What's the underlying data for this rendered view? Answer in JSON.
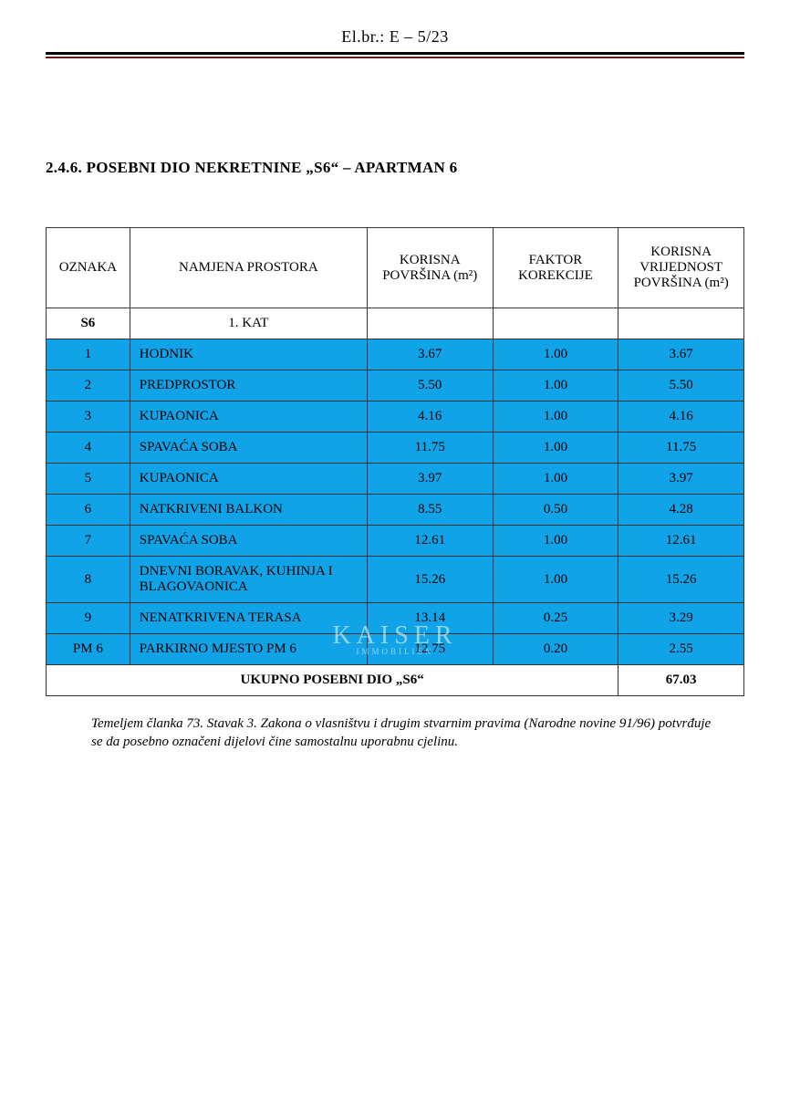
{
  "header": {
    "reference": "El.br.: E – 5/23"
  },
  "section": {
    "number_and_title": "2.4.6.   POSEBNI DIO NEKRETNINE „S6“ – APARTMAN 6"
  },
  "table": {
    "columns": {
      "oznaka": "OZNAKA",
      "namjena": "NAMJENA PROSTORA",
      "korisna": "KORISNA POVRŠINA (m²)",
      "faktor": "FAKTOR KOREKCIJE",
      "vrijednost": "KORISNA VRIJEDNOST POVRŠINA (m²)"
    },
    "floor_row": {
      "oznaka": "S6",
      "namjena": "1. KAT"
    },
    "rows": [
      {
        "oznaka": "1",
        "namjena": "HODNIK",
        "korisna": "3.67",
        "faktor": "1.00",
        "vrijednost": "3.67"
      },
      {
        "oznaka": "2",
        "namjena": "PREDPROSTOR",
        "korisna": "5.50",
        "faktor": "1.00",
        "vrijednost": "5.50"
      },
      {
        "oznaka": "3",
        "namjena": "KUPAONICA",
        "korisna": "4.16",
        "faktor": "1.00",
        "vrijednost": "4.16"
      },
      {
        "oznaka": "4",
        "namjena": "SPAVAĆA SOBA",
        "korisna": "11.75",
        "faktor": "1.00",
        "vrijednost": "11.75"
      },
      {
        "oznaka": "5",
        "namjena": "KUPAONICA",
        "korisna": "3.97",
        "faktor": "1.00",
        "vrijednost": "3.97"
      },
      {
        "oznaka": "6",
        "namjena": "NATKRIVENI BALKON",
        "korisna": "8.55",
        "faktor": "0.50",
        "vrijednost": "4.28"
      },
      {
        "oznaka": "7",
        "namjena": "SPAVAĆA SOBA",
        "korisna": "12.61",
        "faktor": "1.00",
        "vrijednost": "12.61"
      },
      {
        "oznaka": "8",
        "namjena": "DNEVNI BORAVAK, KUHINJA I BLAGOVAONICA",
        "korisna": "15.26",
        "faktor": "1.00",
        "vrijednost": "15.26"
      },
      {
        "oznaka": "9",
        "namjena": "NENATKRIVENA TERASA",
        "korisna": "13.14",
        "faktor": "0.25",
        "vrijednost": "3.29"
      },
      {
        "oznaka": "PM  6",
        "namjena": "PARKIRNO MJESTO PM 6",
        "korisna": "12.75",
        "faktor": "0.20",
        "vrijednost": "2.55"
      }
    ],
    "total": {
      "label": "UKUPNO POSEBNI DIO „S6“",
      "value": "67.03"
    },
    "colors": {
      "row_blue": "#11a3e8",
      "border": "#333333",
      "header_rule_dark": "#6b1a1a"
    }
  },
  "footnote": {
    "text": "Temeljem članka 73. Stavak 3. Zakona o vlasništvu i drugim stvarnim pravima (Narodne novine 91/96) potvrđuje se da posebno označeni dijelovi čine samostalnu uporabnu cjelinu."
  },
  "watermark": {
    "main": "KAISER",
    "sub": "IMMOBILIEN"
  }
}
